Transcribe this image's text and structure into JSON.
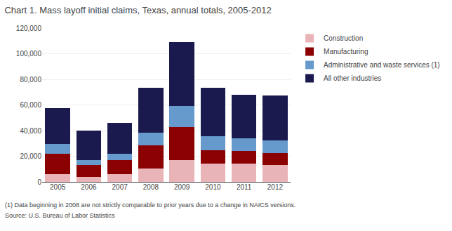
{
  "chart_data": {
    "type": "bar",
    "title": "Chart 1. Mass layoff initial claims, Texas, annual totals, 2005-2012",
    "categories": [
      "2005",
      "2006",
      "2007",
      "2008",
      "2009",
      "2010",
      "2011",
      "2012"
    ],
    "series": [
      {
        "name": "Construction",
        "color": "#e8b4b8",
        "values": [
          6000,
          4000,
          6000,
          10500,
          17000,
          14500,
          14500,
          13000
        ]
      },
      {
        "name": "Manufacturing",
        "color": "#8b0000",
        "values": [
          16000,
          9000,
          11000,
          18000,
          26000,
          10000,
          9500,
          9500
        ]
      },
      {
        "name": "Administrative and waste services (1)",
        "color": "#6699cc",
        "values": [
          7500,
          4000,
          5000,
          10000,
          16000,
          11000,
          10000,
          10000
        ]
      },
      {
        "name": "All other industries",
        "color": "#1a1a4e",
        "values": [
          28000,
          23000,
          24000,
          35000,
          50000,
          38000,
          34000,
          35000
        ]
      }
    ],
    "stacked": true,
    "ylim": [
      0,
      120000
    ],
    "yticks": [
      0,
      {
        "value": 20000,
        "label": "20,000"
      },
      {
        "value": 40000,
        "label": "40,000"
      },
      {
        "value": 60000,
        "label": "60,000"
      },
      {
        "value": 80000,
        "label": "80,000"
      },
      {
        "value": 100000,
        "label": "100,000"
      },
      {
        "value": 120000,
        "label": "120,000"
      }
    ],
    "grid": true,
    "legend": "right",
    "annotations": [
      "(1) Data beginning in 2008 are not strictly comparable to prior years due to a change in NAICS versions.",
      "Source: U.S. Bureau of Labor Statistics"
    ]
  }
}
